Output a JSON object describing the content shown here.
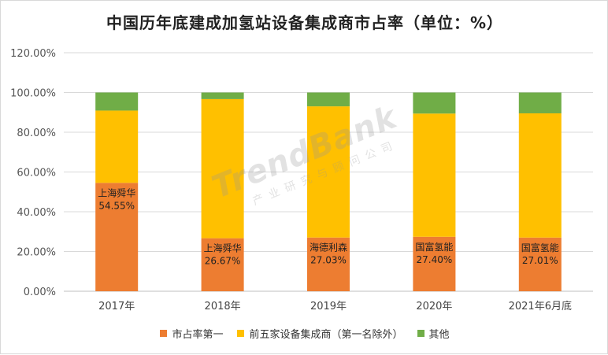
{
  "chart_data": {
    "type": "bar",
    "stacked": true,
    "title": "中国历年底建成加氢站设备集成商市占率（单位：%）",
    "categories": [
      "2017年",
      "2018年",
      "2019年",
      "2020年",
      "2021年6月底"
    ],
    "series": [
      {
        "name": "市占率第一",
        "color": "#ED7D31",
        "values": [
          54.55,
          26.67,
          27.03,
          27.4,
          27.01
        ]
      },
      {
        "name": "前五家设备集成商（第一名除外）",
        "color": "#FFC000",
        "values": [
          36.36,
          70.0,
          66.0,
          62.0,
          62.5
        ]
      },
      {
        "name": "其他",
        "color": "#70AD47",
        "values": [
          9.09,
          3.33,
          6.97,
          10.6,
          10.49
        ]
      }
    ],
    "top_labels": [
      "上海舜华",
      "上海舜华",
      "海德利森",
      "国富氢能",
      "国富氢能"
    ],
    "value_labels": [
      "54.55%",
      "26.67%",
      "27.03%",
      "27.40%",
      "27.01%"
    ],
    "y_ticks": [
      "0.00%",
      "20.00%",
      "40.00%",
      "60.00%",
      "80.00%",
      "100.00%",
      "120.00%"
    ],
    "ylim": [
      0,
      120
    ],
    "grid": true,
    "legend_position": "bottom"
  },
  "watermark": {
    "brand": "TrendBank",
    "subtitle": "产业研究与顾问公司"
  }
}
